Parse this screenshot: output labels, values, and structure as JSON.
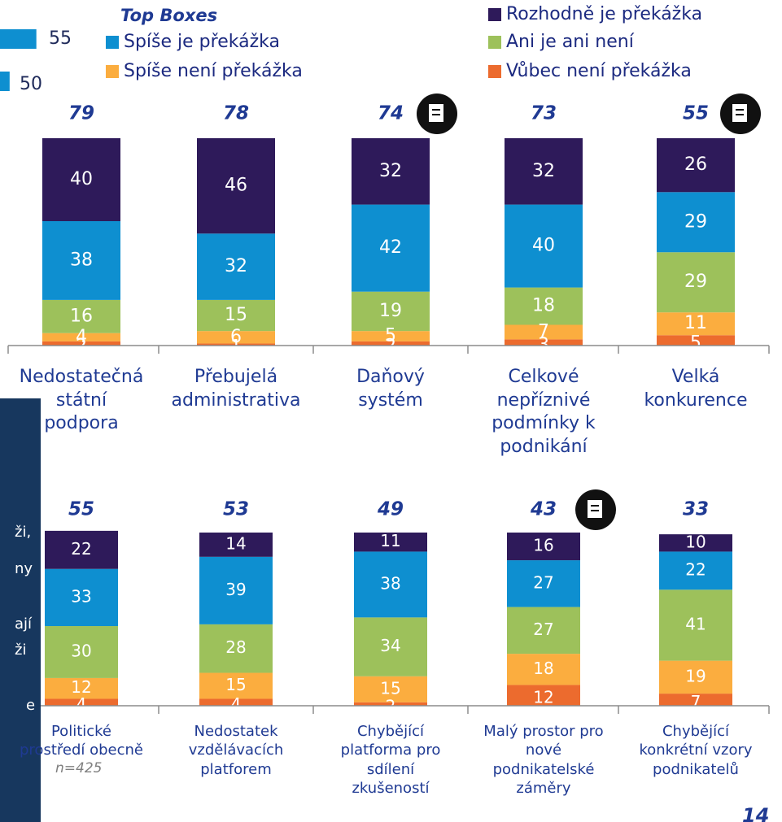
{
  "legend": {
    "title": "Top Boxes"
  },
  "side_fragment": {
    "type": "bar",
    "values": [
      55,
      50
    ],
    "color": "#0e8fd0",
    "xlim": [
      48.2,
      55.2
    ]
  },
  "side_panel": {
    "lines": [
      "ži,",
      "ny",
      "ají",
      "ži",
      "e"
    ]
  },
  "note": "n=425",
  "page_number": "14",
  "chart_data": [
    {
      "type": "stacked_bar",
      "categories": [
        "Nedostatečná\nstátní\npodpora",
        "Přebujelá\nadministrativa",
        "Daňový\nsystém",
        "Celkové\nnepříznivé\npodmínky k\npodnikání",
        "Velká\nkonkurence"
      ],
      "top_boxes": [
        79,
        78,
        74,
        73,
        55
      ],
      "ylim": [
        0,
        100
      ],
      "series": [
        {
          "name": "Vůbec není překážka",
          "color": "#ec6b2e",
          "values": [
            2,
            1,
            2,
            3,
            5
          ]
        },
        {
          "name": "Spíše není překážka",
          "color": "#fbad3f",
          "values": [
            4,
            6,
            5,
            7,
            11
          ]
        },
        {
          "name": "Ani je ani není",
          "color": "#9dc15b",
          "values": [
            16,
            15,
            19,
            18,
            29
          ]
        },
        {
          "name": "Spíše je překážka",
          "color": "#0e8fd0",
          "values": [
            38,
            32,
            42,
            40,
            29
          ]
        },
        {
          "name": "Rozhodně je překážka",
          "color": "#2e1a5a",
          "values": [
            40,
            46,
            32,
            32,
            26
          ]
        }
      ]
    },
    {
      "type": "stacked_bar",
      "categories": [
        "Politické\nprostředí obecně",
        "Nedostatek\nvzdělávacích\nplatforem",
        "Chybějící\nplatforma pro\nsdílení\nzkušeností",
        "Malý prostor pro\nnové\npodnikatelské\nzáměry",
        "Chybějící\nkonkrétní vzory\npodnikatelů"
      ],
      "top_boxes": [
        55,
        53,
        49,
        43,
        33
      ],
      "ylim": [
        0,
        100
      ],
      "series": [
        {
          "color": "#ec6b2e",
          "values": [
            4,
            4,
            2,
            12,
            7
          ]
        },
        {
          "color": "#fbad3f",
          "values": [
            12,
            15,
            15,
            18,
            19
          ]
        },
        {
          "color": "#9dc15b",
          "values": [
            30,
            28,
            34,
            27,
            41
          ]
        },
        {
          "color": "#0e8fd0",
          "values": [
            33,
            39,
            38,
            27,
            22
          ]
        },
        {
          "color": "#2e1a5a",
          "values": [
            22,
            14,
            11,
            16,
            10
          ]
        }
      ]
    }
  ]
}
